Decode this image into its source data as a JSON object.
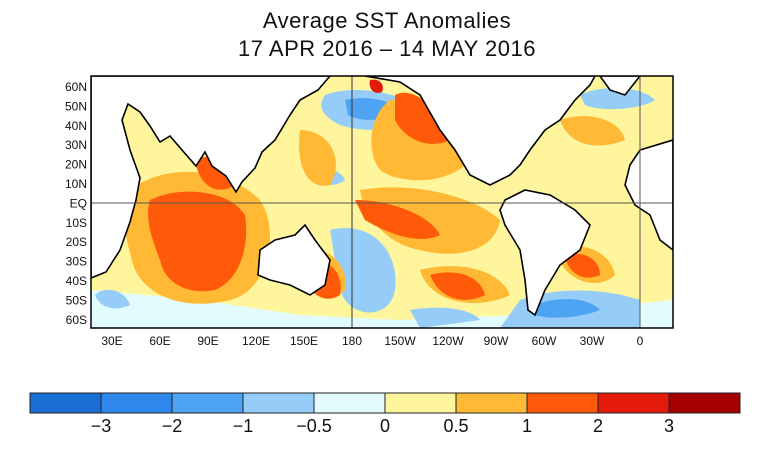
{
  "title": "Average SST Anomalies",
  "subtitle": "17 APR 2016 – 14 MAY 2016",
  "map": {
    "lat_labels": [
      "60N",
      "50N",
      "40N",
      "30N",
      "20N",
      "10N",
      "EQ",
      "10S",
      "20S",
      "30S",
      "40S",
      "50S",
      "60S"
    ],
    "lon_labels": [
      "30E",
      "60E",
      "90E",
      "120E",
      "150E",
      "180",
      "150W",
      "120W",
      "90W",
      "60W",
      "30W",
      "0"
    ]
  },
  "colorbar": {
    "colors": [
      "#1a6fd6",
      "#2f86ec",
      "#4fa3f3",
      "#96ccf8",
      "#e2fbff",
      "#fff59c",
      "#ffb934",
      "#ff5a0a",
      "#e41a0a",
      "#a40000"
    ],
    "labels": [
      "−3",
      "−2",
      "−1",
      "−0.5",
      "0",
      "0.5",
      "1",
      "2",
      "3"
    ]
  }
}
